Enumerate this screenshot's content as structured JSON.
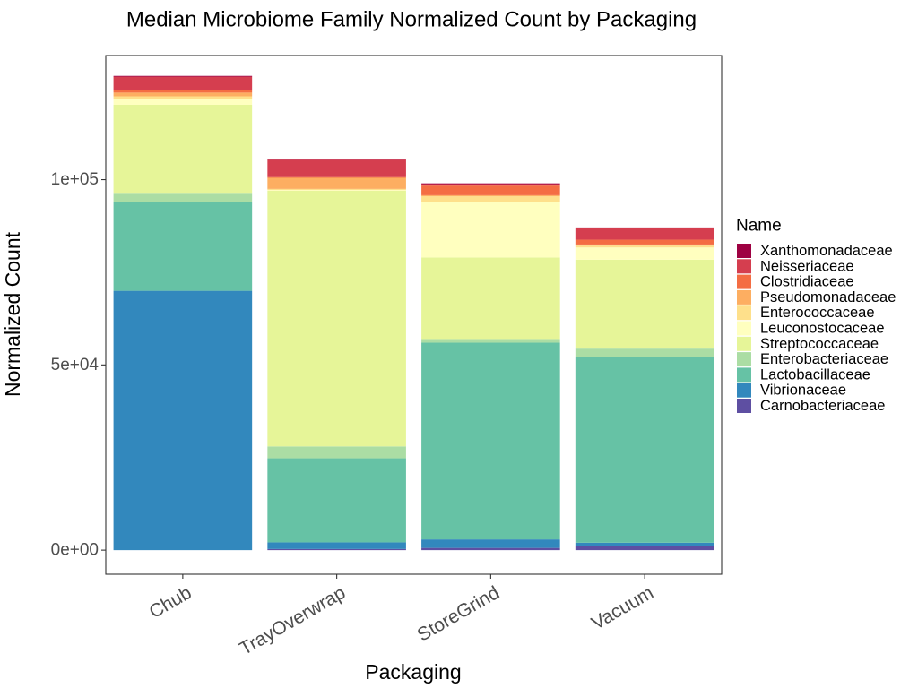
{
  "chart_data": {
    "type": "bar",
    "stacked": true,
    "title": "Median Microbiome Family Normalized Count by Packaging",
    "xlabel": "Packaging",
    "ylabel": "Normalized Count",
    "ylim": [
      -6500,
      133500
    ],
    "yticks": [
      0,
      50000,
      100000
    ],
    "ytick_labels": [
      "0e+00",
      "5e+04",
      "1e+05"
    ],
    "grid": false,
    "legend": {
      "title": "Name",
      "position": "right"
    },
    "categories": [
      "Chub",
      "TrayOverwrap",
      "StoreGrind",
      "Vacuum"
    ],
    "series": [
      {
        "name": "Carnobacteriaceae",
        "color": "#5e4fa2",
        "values": [
          0,
          300,
          600,
          1200
        ]
      },
      {
        "name": "Vibrionaceae",
        "color": "#3288bd",
        "values": [
          70000,
          1800,
          2300,
          800
        ]
      },
      {
        "name": "Lactobacillaceae",
        "color": "#66c2a5",
        "values": [
          24000,
          22700,
          53100,
          50200
        ]
      },
      {
        "name": "Enterobacteriaceae",
        "color": "#abdda4",
        "values": [
          2200,
          3200,
          1000,
          2200
        ]
      },
      {
        "name": "Streptococcaceae",
        "color": "#e6f598",
        "values": [
          24000,
          69000,
          22000,
          24000
        ]
      },
      {
        "name": "Leuconostocaceae",
        "color": "#ffffbf",
        "values": [
          1500,
          200,
          15000,
          3300
        ]
      },
      {
        "name": "Enterococcaceae",
        "color": "#fee08b",
        "values": [
          800,
          300,
          1500,
          500
        ]
      },
      {
        "name": "Pseudomonadaceae",
        "color": "#fdae61",
        "values": [
          1000,
          3000,
          300,
          300
        ]
      },
      {
        "name": "Clostridiaceae",
        "color": "#f46d43",
        "values": [
          800,
          200,
          2600,
          1300
        ]
      },
      {
        "name": "Neisseriaceae",
        "color": "#d53e4f",
        "values": [
          3500,
          4700,
          400,
          3100
        ]
      },
      {
        "name": "Xanthomonadaceae",
        "color": "#9e0142",
        "values": [
          200,
          200,
          200,
          200
        ]
      }
    ]
  }
}
